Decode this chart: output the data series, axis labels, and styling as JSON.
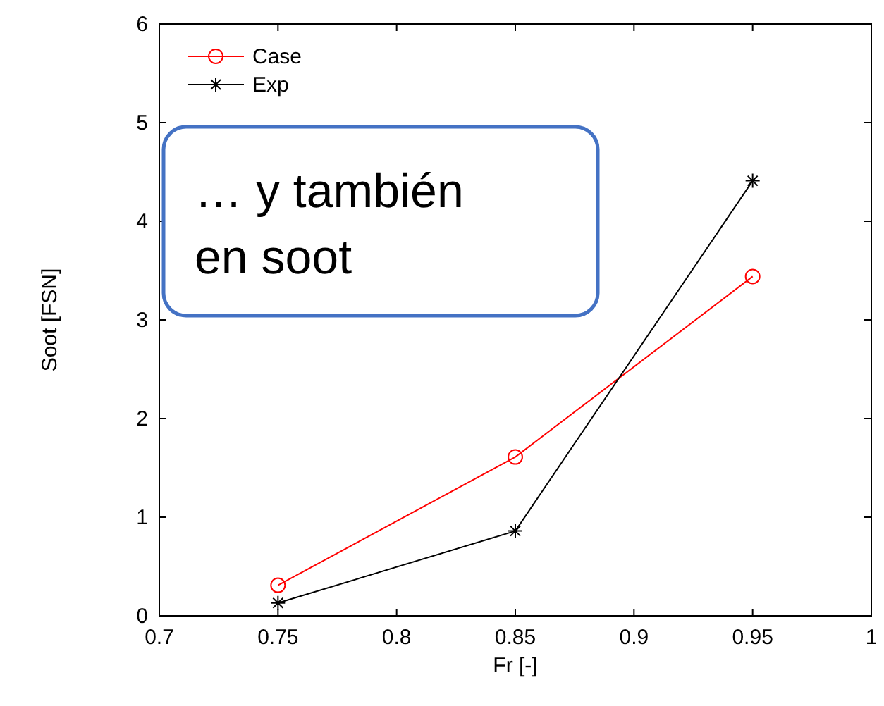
{
  "chart_data": {
    "type": "line",
    "xlabel": "Fr [-]",
    "ylabel": "Soot [FSN]",
    "x": [
      0.75,
      0.85,
      0.95
    ],
    "series": [
      {
        "name": "Case",
        "color": "#ff0000",
        "values": [
          0.31,
          1.61,
          3.44
        ],
        "marker": "circle"
      },
      {
        "name": "Exp",
        "color": "#000000",
        "values": [
          0.13,
          0.86,
          4.41
        ],
        "marker": "cross"
      }
    ],
    "xlim": [
      0.7,
      1
    ],
    "xticks": [
      0.7,
      0.75,
      0.8,
      0.85,
      0.9,
      0.95,
      1
    ],
    "ylim": [
      0,
      6
    ],
    "yticks": [
      0,
      1,
      2,
      3,
      4,
      5,
      6
    ],
    "grid": false,
    "legend": "top left",
    "line_style": "solid",
    "annotations": [
      "… y también en soot"
    ]
  }
}
